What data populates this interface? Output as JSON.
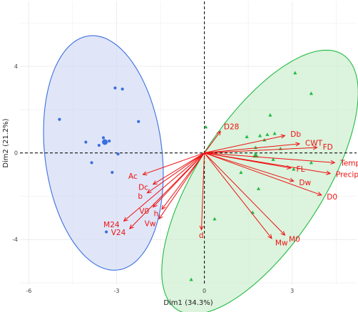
{
  "chart_data": {
    "type": "scatter",
    "subtype": "pca-biplot",
    "title": "",
    "xlabel": "Dim1 (34.3%)",
    "ylabel": "Dim2 (21.2%)",
    "xlim": [
      -6.3,
      5.2
    ],
    "ylim": [
      -6.1,
      7.0
    ],
    "xticks": [
      -6,
      -3,
      0,
      3
    ],
    "yticks": [
      -4,
      0,
      4
    ],
    "grid": true,
    "colors": {
      "group1": "#3b6fe0",
      "group1_fill": "#d3dcf5",
      "group2": "#22bb44",
      "group2_fill": "#cdeecf",
      "variables": "#ee1111",
      "panel": "#ffffff",
      "grid": "#ececec"
    },
    "groups": [
      {
        "shape": "circle",
        "points": [
          {
            "x": -4.95,
            "y": 1.55
          },
          {
            "x": -3.05,
            "y": 3.0
          },
          {
            "x": -2.8,
            "y": 2.95
          },
          {
            "x": -2.25,
            "y": 1.45
          },
          {
            "x": -4.05,
            "y": 0.5
          },
          {
            "x": -3.45,
            "y": 0.7
          },
          {
            "x": -3.6,
            "y": 0.35
          },
          {
            "x": -3.25,
            "y": 0.55
          },
          {
            "x": -2.95,
            "y": -0.05
          },
          {
            "x": -3.85,
            "y": -0.45
          },
          {
            "x": -3.15,
            "y": -0.9
          },
          {
            "x": -3.35,
            "y": -3.65
          }
        ],
        "centroid": {
          "x": -3.4,
          "y": 0.5
        },
        "ellipse": {
          "cx": -3.45,
          "cy": 0.0,
          "rx": 2.0,
          "ry": 5.45,
          "angle": -7
        }
      },
      {
        "shape": "triangle",
        "points": [
          {
            "x": 3.1,
            "y": 3.7
          },
          {
            "x": 3.65,
            "y": 2.75
          },
          {
            "x": 2.25,
            "y": 1.75
          },
          {
            "x": 0.05,
            "y": 1.2
          },
          {
            "x": 1.45,
            "y": 0.75
          },
          {
            "x": 1.9,
            "y": 0.8
          },
          {
            "x": 2.15,
            "y": 0.85
          },
          {
            "x": 2.4,
            "y": 0.9
          },
          {
            "x": 2.05,
            "y": 0.6
          },
          {
            "x": 1.75,
            "y": 0.25
          },
          {
            "x": 2.6,
            "y": 0.2
          },
          {
            "x": 2.35,
            "y": -0.3
          },
          {
            "x": 3.65,
            "y": -0.45
          },
          {
            "x": 3.05,
            "y": -0.75
          },
          {
            "x": 1.25,
            "y": -0.9
          },
          {
            "x": 1.85,
            "y": -1.65
          },
          {
            "x": 1.65,
            "y": -2.75
          },
          {
            "x": 0.35,
            "y": -3.05
          },
          {
            "x": -0.45,
            "y": -5.85
          }
        ],
        "centroid": {
          "x": 1.75,
          "y": -0.1
        },
        "ellipse": {
          "cx": 1.9,
          "cy": -1.35,
          "rx": 5.2,
          "ry": 2.9,
          "angle": -57
        }
      }
    ],
    "variables": [
      {
        "name": "D28",
        "x": 0.55,
        "y": 1.0
      },
      {
        "name": "Db",
        "x": 2.75,
        "y": 0.8
      },
      {
        "name": "CWT",
        "x": 3.25,
        "y": 0.42
      },
      {
        "name": "FD",
        "x": 3.85,
        "y": 0.25
      },
      {
        "name": "Temp",
        "x": 4.45,
        "y": -0.45
      },
      {
        "name": "FL",
        "x": 2.95,
        "y": -0.7
      },
      {
        "name": "Precip",
        "x": 4.3,
        "y": -0.95
      },
      {
        "name": "Dw",
        "x": 3.05,
        "y": -1.3
      },
      {
        "name": "D0",
        "x": 4.0,
        "y": -1.95
      },
      {
        "name": "M0",
        "x": 2.75,
        "y": -3.8
      },
      {
        "name": "Mw",
        "x": 2.3,
        "y": -3.95
      },
      {
        "name": "d",
        "x": -0.1,
        "y": -3.55
      },
      {
        "name": "Vw",
        "x": -1.55,
        "y": -3.05
      },
      {
        "name": "h",
        "x": -1.45,
        "y": -2.6
      },
      {
        "name": "V0",
        "x": -1.75,
        "y": -2.5
      },
      {
        "name": "b",
        "x": -1.95,
        "y": -1.85
      },
      {
        "name": "Dc",
        "x": -1.75,
        "y": -1.45
      },
      {
        "name": "Ac",
        "x": -2.1,
        "y": -1.0
      },
      {
        "name": "M24",
        "x": -2.75,
        "y": -3.15
      },
      {
        "name": "V24",
        "x": -2.55,
        "y": -3.5
      }
    ]
  }
}
